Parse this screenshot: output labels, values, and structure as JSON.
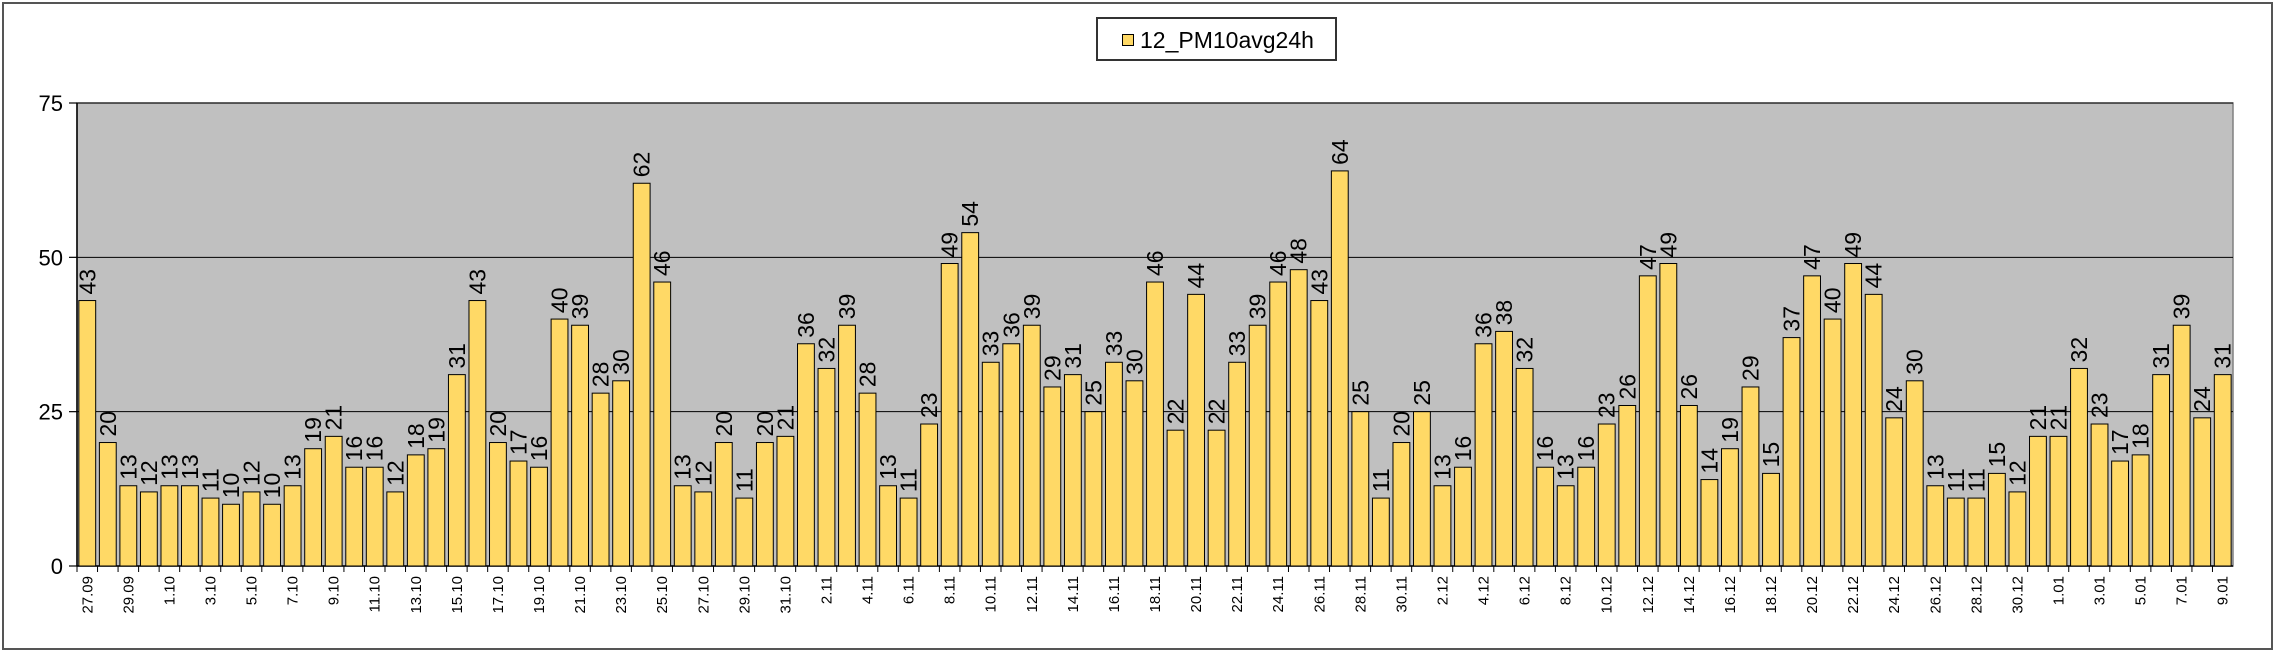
{
  "chart_data": {
    "type": "bar",
    "title": "",
    "xlabel": "",
    "ylabel": "",
    "ylim": [
      0,
      75
    ],
    "yticks": [
      0,
      25,
      50,
      75
    ],
    "grid": "horizontal",
    "legend_position": "top-center",
    "series": [
      {
        "name": "12_PM10avg24h",
        "color": "#FFD966",
        "values": [
          43,
          20,
          13,
          12,
          13,
          13,
          11,
          10,
          12,
          10,
          13,
          19,
          21,
          16,
          16,
          12,
          18,
          19,
          31,
          43,
          20,
          17,
          16,
          40,
          39,
          28,
          30,
          62,
          46,
          13,
          12,
          20,
          11,
          20,
          21,
          36,
          32,
          39,
          28,
          13,
          11,
          23,
          49,
          54,
          33,
          36,
          39,
          29,
          31,
          25,
          33,
          30,
          46,
          22,
          44,
          22,
          33,
          39,
          46,
          48,
          43,
          64,
          25,
          11,
          20,
          25,
          13,
          16,
          36,
          38,
          32,
          16,
          13,
          16,
          23,
          26,
          47,
          49,
          26,
          14,
          19,
          29,
          15,
          37,
          47,
          40,
          49,
          44,
          24,
          30,
          13,
          11,
          11,
          15,
          12,
          21,
          21,
          32,
          23,
          17,
          18,
          31,
          39,
          24,
          31
        ]
      }
    ],
    "categories": [
      "27.09",
      "",
      "29.09",
      "",
      "1.10",
      "",
      "3.10",
      "",
      "5.10",
      "",
      "7.10",
      "",
      "9.10",
      "",
      "11.10",
      "",
      "13.10",
      "",
      "15.10",
      "",
      "17.10",
      "",
      "19.10",
      "",
      "21.10",
      "",
      "23.10",
      "",
      "25.10",
      "",
      "27.10",
      "",
      "29.10",
      "",
      "31.10",
      "",
      "2.11",
      "",
      "4.11",
      "",
      "6.11",
      "",
      "8.11",
      "",
      "10.11",
      "",
      "12.11",
      "",
      "14.11",
      "",
      "16.11",
      "",
      "18.11",
      "",
      "20.11",
      "",
      "22.11",
      "",
      "24.11",
      "",
      "26.11",
      "",
      "28.11",
      "",
      "30.11",
      "",
      "2.12",
      "",
      "4.12",
      "",
      "6.12",
      "",
      "8.12",
      "",
      "10.12",
      "",
      "12.12",
      "",
      "14.12",
      "",
      "16.12",
      "",
      "18.12",
      "",
      "20.12",
      "",
      "22.12",
      "",
      "24.12",
      "",
      "26.12",
      "",
      "28.12",
      "",
      "30.12",
      "",
      "1.01",
      "",
      "3.01",
      "",
      "5.01",
      "",
      "7.01",
      "",
      "9.01"
    ],
    "plot_background": "#C0C0C0",
    "bar_edge_color": "#000000"
  }
}
